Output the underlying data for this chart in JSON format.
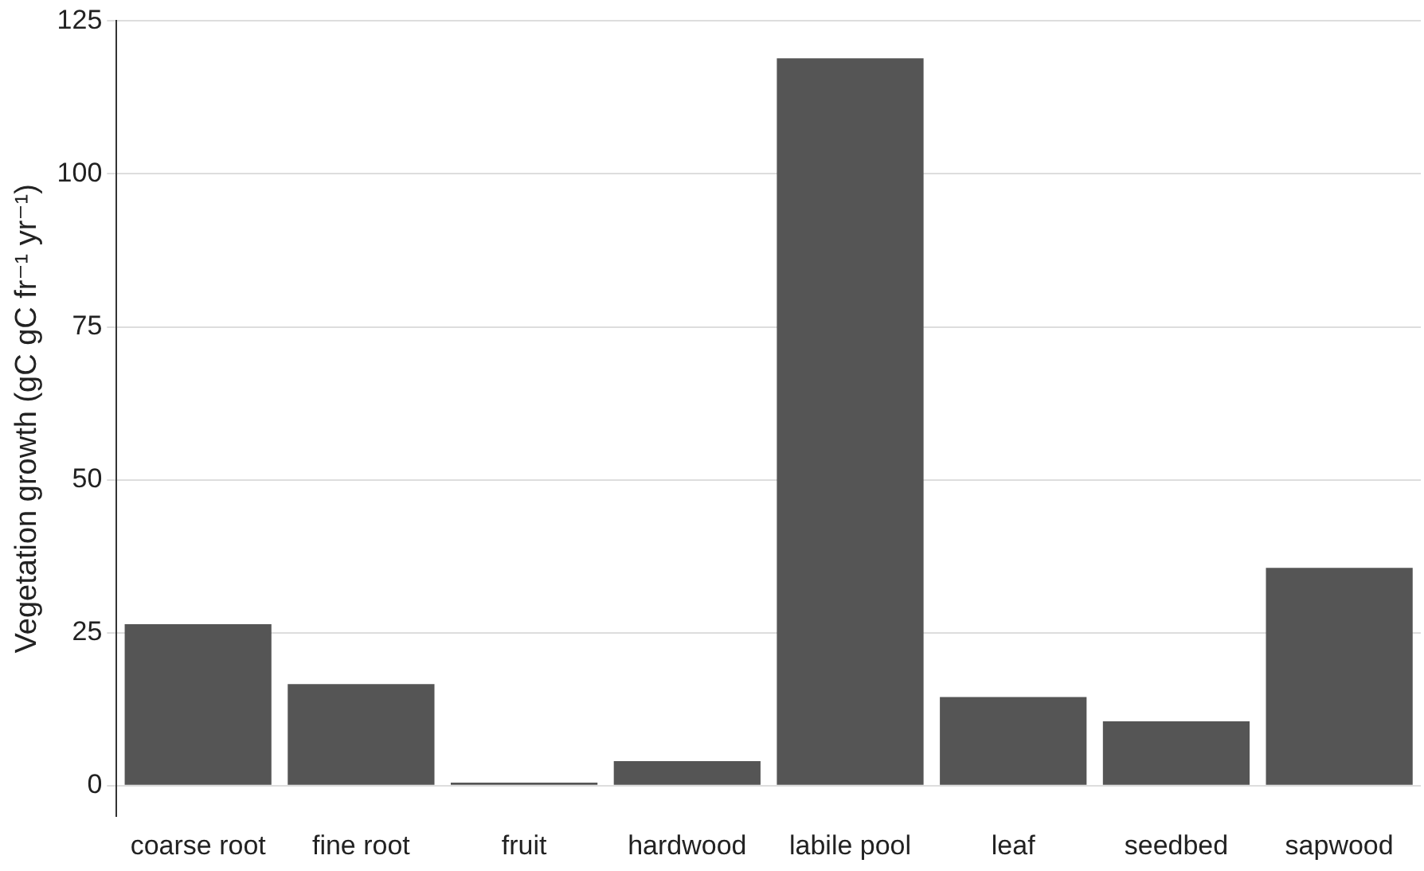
{
  "chart_data": {
    "type": "bar",
    "ylabel": "Vegetation growth (gC gC fr⁻¹ yr⁻¹)",
    "categories": [
      "coarse root",
      "fine root",
      "fruit",
      "hardwood",
      "labile pool",
      "leaf",
      "seedbed",
      "sapwood"
    ],
    "values": [
      26.4,
      16.6,
      0.5,
      4.0,
      118.9,
      14.5,
      10.5,
      35.6
    ],
    "color": "#555555",
    "ylim": [
      -5,
      125
    ],
    "yticks": [
      0,
      25,
      50,
      75,
      100,
      125
    ],
    "grid": "y",
    "legend": false
  }
}
